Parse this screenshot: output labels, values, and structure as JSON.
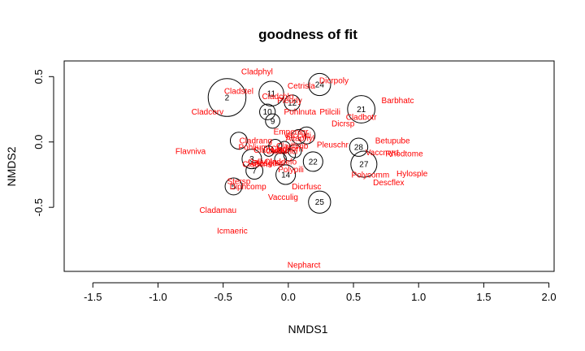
{
  "chart_data": {
    "type": "scatter",
    "title": "goodness of fit",
    "xlabel": "NMDS1",
    "ylabel": "NMDS2",
    "xlim": [
      -1.72,
      2.04
    ],
    "ylim": [
      -0.99,
      0.62
    ],
    "xticks": [
      "-1.5",
      "-1.0",
      "-0.5",
      "0.0",
      "0.5",
      "1.0",
      "1.5",
      "2.0"
    ],
    "yticks": [
      "-0.5",
      "0.0",
      "0.5"
    ],
    "species_color": "#ff0000",
    "site_color": "#000000",
    "sites": [
      {
        "label": "2",
        "x": -0.47,
        "y": 0.34,
        "r": 0.145
      },
      {
        "label": "11",
        "x": -0.13,
        "y": 0.37,
        "r": 0.095
      },
      {
        "label": "24",
        "x": 0.24,
        "y": 0.44,
        "r": 0.085
      },
      {
        "label": "12",
        "x": 0.03,
        "y": 0.3,
        "r": 0.06
      },
      {
        "label": "10",
        "x": -0.16,
        "y": 0.23,
        "r": 0.06
      },
      {
        "label": "9",
        "x": -0.12,
        "y": 0.16,
        "r": 0.055
      },
      {
        "label": "21",
        "x": 0.56,
        "y": 0.25,
        "r": 0.105
      },
      {
        "label": "28",
        "x": 0.54,
        "y": -0.04,
        "r": 0.07
      },
      {
        "label": "27",
        "x": 0.58,
        "y": -0.17,
        "r": 0.1
      },
      {
        "label": "22",
        "x": 0.19,
        "y": -0.15,
        "r": 0.075
      },
      {
        "label": "14",
        "x": -0.02,
        "y": -0.25,
        "r": 0.075
      },
      {
        "label": "25",
        "x": 0.24,
        "y": -0.46,
        "r": 0.085
      },
      {
        "label": "3",
        "x": -0.28,
        "y": -0.13,
        "r": 0.075
      },
      {
        "label": "7",
        "x": -0.26,
        "y": -0.22,
        "r": 0.065
      },
      {
        "label": "5",
        "x": -0.42,
        "y": -0.34,
        "r": 0.065
      },
      {
        "label": "",
        "x": -0.38,
        "y": 0.01,
        "r": 0.065
      },
      {
        "label": "",
        "x": 0.14,
        "y": 0.05,
        "r": 0.065
      },
      {
        "label": "",
        "x": 0.08,
        "y": 0.04,
        "r": 0.055
      },
      {
        "label": "",
        "x": 0.05,
        "y": -0.07,
        "r": 0.05
      },
      {
        "label": "",
        "x": -0.1,
        "y": -0.03,
        "r": 0.05
      },
      {
        "label": "",
        "x": -0.03,
        "y": -0.04,
        "r": 0.045
      },
      {
        "label": "",
        "x": 0.01,
        "y": -0.1,
        "r": 0.045
      },
      {
        "label": "",
        "x": -0.06,
        "y": -0.13,
        "r": 0.045
      },
      {
        "label": "",
        "x": -0.15,
        "y": -0.07,
        "r": 0.04
      }
    ],
    "species": [
      {
        "label": "Cladphyl",
        "x": -0.24,
        "y": 0.54
      },
      {
        "label": "Dicrpoly",
        "x": 0.35,
        "y": 0.47
      },
      {
        "label": "Cetrisla",
        "x": 0.1,
        "y": 0.43
      },
      {
        "label": "Cladstel",
        "x": -0.38,
        "y": 0.39
      },
      {
        "label": "Cladchlo",
        "x": -0.08,
        "y": 0.35
      },
      {
        "label": "Pleurly",
        "x": 0.01,
        "y": 0.32
      },
      {
        "label": "Barbhatc",
        "x": 0.84,
        "y": 0.32
      },
      {
        "label": "Pohlnuta",
        "x": 0.09,
        "y": 0.23
      },
      {
        "label": "Ptilcili",
        "x": 0.32,
        "y": 0.23
      },
      {
        "label": "Cladcerv",
        "x": -0.62,
        "y": 0.23
      },
      {
        "label": "Cladbotr",
        "x": 0.56,
        "y": 0.19
      },
      {
        "label": "Dicrsp",
        "x": 0.42,
        "y": 0.14
      },
      {
        "label": "Empenigr",
        "x": 0.02,
        "y": 0.08
      },
      {
        "label": "Vaccviti",
        "x": 0.07,
        "y": 0.05
      },
      {
        "label": "Altaphyl",
        "x": 0.09,
        "y": 0.03
      },
      {
        "label": "Cladrang",
        "x": -0.25,
        "y": 0.01
      },
      {
        "label": "Pleuschr",
        "x": 0.34,
        "y": -0.02
      },
      {
        "label": "Betupube",
        "x": 0.8,
        "y": 0.01
      },
      {
        "label": "Pohlium",
        "x": -0.27,
        "y": -0.04
      },
      {
        "label": "Cladarbu",
        "x": -0.14,
        "y": -0.06
      },
      {
        "label": "Cladunci",
        "x": -0.05,
        "y": -0.07
      },
      {
        "label": "Cladcorn",
        "x": -0.01,
        "y": -0.05
      },
      {
        "label": "Cladfimb",
        "x": 0.03,
        "y": -0.03
      },
      {
        "label": "Flavniva",
        "x": -0.75,
        "y": -0.07
      },
      {
        "label": "Vaccmyrt",
        "x": 0.72,
        "y": -0.08
      },
      {
        "label": "Rhodtome",
        "x": 0.89,
        "y": -0.09
      },
      {
        "label": "Callvulg",
        "x": -0.2,
        "y": -0.15
      },
      {
        "label": "Claddefo",
        "x": -0.06,
        "y": -0.15
      },
      {
        "label": "Cladcris",
        "x": -0.24,
        "y": -0.17
      },
      {
        "label": "Cladgrac",
        "x": -0.16,
        "y": -0.16
      },
      {
        "label": "Polypili",
        "x": 0.02,
        "y": -0.21
      },
      {
        "label": "Polycomm",
        "x": 0.63,
        "y": -0.25
      },
      {
        "label": "Hylosple",
        "x": 0.95,
        "y": -0.24
      },
      {
        "label": "Descflex",
        "x": 0.77,
        "y": -0.31
      },
      {
        "label": "Stersp",
        "x": -0.38,
        "y": -0.3
      },
      {
        "label": "Diphcomp",
        "x": -0.31,
        "y": -0.34
      },
      {
        "label": "Dicrfusc",
        "x": 0.14,
        "y": -0.34
      },
      {
        "label": "Vacculig",
        "x": -0.04,
        "y": -0.42
      },
      {
        "label": "Cladamau",
        "x": -0.54,
        "y": -0.52
      },
      {
        "label": "Icmaeric",
        "x": -0.43,
        "y": -0.68
      },
      {
        "label": "Nepharct",
        "x": 0.12,
        "y": -0.94
      }
    ]
  }
}
